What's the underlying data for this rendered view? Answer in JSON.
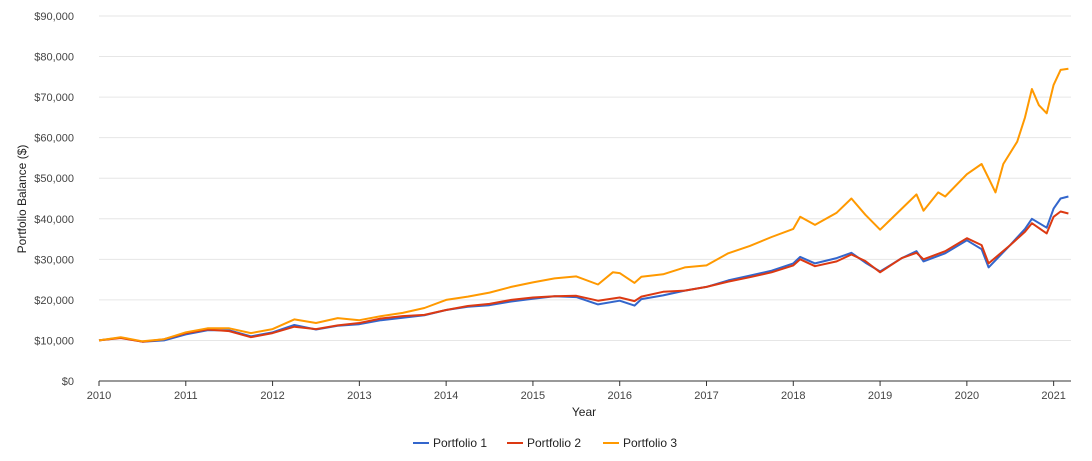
{
  "chart_data": {
    "type": "line",
    "title": "",
    "xlabel": "Year",
    "ylabel": "Portfolio Balance ($)",
    "xlim": [
      2010,
      2021.2
    ],
    "ylim": [
      0,
      90000
    ],
    "x_ticks": [
      "2010",
      "2011",
      "2012",
      "2013",
      "2014",
      "2015",
      "2016",
      "2017",
      "2018",
      "2019",
      "2020",
      "2021"
    ],
    "y_ticks": [
      "$0",
      "$10,000",
      "$20,000",
      "$30,000",
      "$40,000",
      "$50,000",
      "$60,000",
      "$70,000",
      "$80,000",
      "$90,000"
    ],
    "grid": true,
    "legend_position": "bottom",
    "colors": {
      "Portfolio 1": "#3366cc",
      "Portfolio 2": "#dc3912",
      "Portfolio 3": "#ff9900"
    },
    "series": [
      {
        "name": "Portfolio 1",
        "points": [
          [
            2010.0,
            10000
          ],
          [
            2010.25,
            10700
          ],
          [
            2010.5,
            9700
          ],
          [
            2010.75,
            10000
          ],
          [
            2011.0,
            11500
          ],
          [
            2011.25,
            12500
          ],
          [
            2011.5,
            12500
          ],
          [
            2011.75,
            11000
          ],
          [
            2012.0,
            12000
          ],
          [
            2012.25,
            13800
          ],
          [
            2012.5,
            12700
          ],
          [
            2012.75,
            13600
          ],
          [
            2013.0,
            14000
          ],
          [
            2013.25,
            15000
          ],
          [
            2013.5,
            15600
          ],
          [
            2013.75,
            16200
          ],
          [
            2014.0,
            17500
          ],
          [
            2014.25,
            18300
          ],
          [
            2014.5,
            18700
          ],
          [
            2014.75,
            19600
          ],
          [
            2015.0,
            20300
          ],
          [
            2015.25,
            20900
          ],
          [
            2015.5,
            20700
          ],
          [
            2015.75,
            18900
          ],
          [
            2016.0,
            19800
          ],
          [
            2016.17,
            18600
          ],
          [
            2016.25,
            20200
          ],
          [
            2016.5,
            21100
          ],
          [
            2016.75,
            22300
          ],
          [
            2017.0,
            23200
          ],
          [
            2017.25,
            24800
          ],
          [
            2017.5,
            26000
          ],
          [
            2017.75,
            27200
          ],
          [
            2018.0,
            29000
          ],
          [
            2018.08,
            30600
          ],
          [
            2018.25,
            29000
          ],
          [
            2018.5,
            30300
          ],
          [
            2018.67,
            31600
          ],
          [
            2018.83,
            29200
          ],
          [
            2019.0,
            27000
          ],
          [
            2019.25,
            30300
          ],
          [
            2019.42,
            32000
          ],
          [
            2019.5,
            29500
          ],
          [
            2019.75,
            31500
          ],
          [
            2020.0,
            34700
          ],
          [
            2020.17,
            32500
          ],
          [
            2020.25,
            28000
          ],
          [
            2020.5,
            33500
          ],
          [
            2020.67,
            37500
          ],
          [
            2020.75,
            40000
          ],
          [
            2020.92,
            37800
          ],
          [
            2021.0,
            42500
          ],
          [
            2021.08,
            45000
          ],
          [
            2021.17,
            45500
          ]
        ]
      },
      {
        "name": "Portfolio 2",
        "points": [
          [
            2010.0,
            10000
          ],
          [
            2010.25,
            10600
          ],
          [
            2010.5,
            9700
          ],
          [
            2010.75,
            10300
          ],
          [
            2011.0,
            11800
          ],
          [
            2011.25,
            12700
          ],
          [
            2011.5,
            12300
          ],
          [
            2011.75,
            10800
          ],
          [
            2012.0,
            11800
          ],
          [
            2012.25,
            13400
          ],
          [
            2012.5,
            12800
          ],
          [
            2012.75,
            13700
          ],
          [
            2013.0,
            14300
          ],
          [
            2013.25,
            15400
          ],
          [
            2013.5,
            16000
          ],
          [
            2013.75,
            16300
          ],
          [
            2014.0,
            17500
          ],
          [
            2014.25,
            18500
          ],
          [
            2014.5,
            19000
          ],
          [
            2014.75,
            20000
          ],
          [
            2015.0,
            20600
          ],
          [
            2015.25,
            20900
          ],
          [
            2015.5,
            21000
          ],
          [
            2015.75,
            19800
          ],
          [
            2016.0,
            20600
          ],
          [
            2016.17,
            19700
          ],
          [
            2016.25,
            20800
          ],
          [
            2016.5,
            22000
          ],
          [
            2016.75,
            22300
          ],
          [
            2017.0,
            23200
          ],
          [
            2017.25,
            24500
          ],
          [
            2017.5,
            25600
          ],
          [
            2017.75,
            26800
          ],
          [
            2018.0,
            28500
          ],
          [
            2018.08,
            30000
          ],
          [
            2018.25,
            28300
          ],
          [
            2018.5,
            29500
          ],
          [
            2018.67,
            31200
          ],
          [
            2018.83,
            29600
          ],
          [
            2019.0,
            26800
          ],
          [
            2019.25,
            30300
          ],
          [
            2019.42,
            31600
          ],
          [
            2019.5,
            30000
          ],
          [
            2019.75,
            32000
          ],
          [
            2020.0,
            35200
          ],
          [
            2020.17,
            33500
          ],
          [
            2020.25,
            29000
          ],
          [
            2020.5,
            33500
          ],
          [
            2020.67,
            36800
          ],
          [
            2020.75,
            38900
          ],
          [
            2020.92,
            36400
          ],
          [
            2021.0,
            40500
          ],
          [
            2021.08,
            41800
          ],
          [
            2021.17,
            41300
          ]
        ]
      },
      {
        "name": "Portfolio 3",
        "points": [
          [
            2010.0,
            10000
          ],
          [
            2010.25,
            10800
          ],
          [
            2010.5,
            9800
          ],
          [
            2010.75,
            10300
          ],
          [
            2011.0,
            12000
          ],
          [
            2011.25,
            13000
          ],
          [
            2011.5,
            13000
          ],
          [
            2011.75,
            11800
          ],
          [
            2012.0,
            12800
          ],
          [
            2012.25,
            15200
          ],
          [
            2012.5,
            14300
          ],
          [
            2012.75,
            15500
          ],
          [
            2013.0,
            15000
          ],
          [
            2013.25,
            16000
          ],
          [
            2013.5,
            16800
          ],
          [
            2013.75,
            18000
          ],
          [
            2014.0,
            20000
          ],
          [
            2014.25,
            20800
          ],
          [
            2014.5,
            21800
          ],
          [
            2014.75,
            23200
          ],
          [
            2015.0,
            24300
          ],
          [
            2015.25,
            25300
          ],
          [
            2015.5,
            25800
          ],
          [
            2015.75,
            23800
          ],
          [
            2015.92,
            26800
          ],
          [
            2016.0,
            26600
          ],
          [
            2016.17,
            24200
          ],
          [
            2016.25,
            25700
          ],
          [
            2016.5,
            26300
          ],
          [
            2016.75,
            28000
          ],
          [
            2017.0,
            28500
          ],
          [
            2017.25,
            31500
          ],
          [
            2017.5,
            33300
          ],
          [
            2017.75,
            35500
          ],
          [
            2018.0,
            37500
          ],
          [
            2018.08,
            40500
          ],
          [
            2018.25,
            38500
          ],
          [
            2018.5,
            41500
          ],
          [
            2018.67,
            45000
          ],
          [
            2018.83,
            41000
          ],
          [
            2019.0,
            37300
          ],
          [
            2019.25,
            42500
          ],
          [
            2019.42,
            46000
          ],
          [
            2019.5,
            42000
          ],
          [
            2019.67,
            46500
          ],
          [
            2019.75,
            45500
          ],
          [
            2020.0,
            51000
          ],
          [
            2020.17,
            53500
          ],
          [
            2020.25,
            50000
          ],
          [
            2020.33,
            46500
          ],
          [
            2020.42,
            53500
          ],
          [
            2020.58,
            59000
          ],
          [
            2020.67,
            65000
          ],
          [
            2020.75,
            72000
          ],
          [
            2020.83,
            68000
          ],
          [
            2020.92,
            66000
          ],
          [
            2021.0,
            73000
          ],
          [
            2021.08,
            76700
          ],
          [
            2021.17,
            77000
          ]
        ]
      }
    ]
  }
}
